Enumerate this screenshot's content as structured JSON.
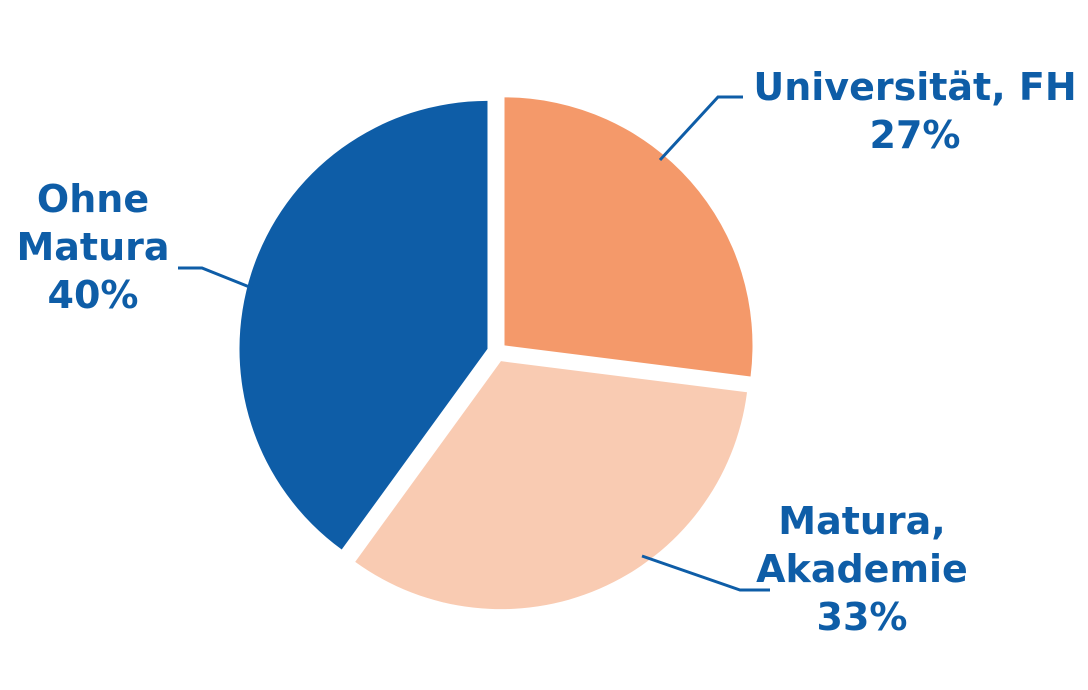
{
  "chart_data": {
    "type": "pie",
    "title": "",
    "slices": [
      {
        "label_lines": [
          "Universität, FH"
        ],
        "value": 27,
        "value_label": "27%",
        "color": "#f4996a"
      },
      {
        "label_lines": [
          "Matura,",
          "Akademie"
        ],
        "value": 33,
        "value_label": "33%",
        "color": "#f9cbb2"
      },
      {
        "label_lines": [
          "Ohne",
          "Matura"
        ],
        "value": 40,
        "value_label": "40%",
        "color": "#0e5da7"
      }
    ],
    "label_color": "#0e5da7",
    "leader_color": "#0e5da7"
  }
}
